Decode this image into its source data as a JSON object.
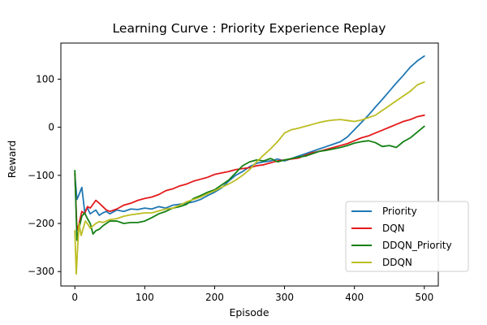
{
  "chart_data": {
    "type": "line",
    "title": "Learning Curve : Priority Experience Replay",
    "xlabel": "Episode",
    "ylabel": "Reward",
    "xlim": [
      -20,
      520
    ],
    "ylim": [
      -330,
      175
    ],
    "xticks": [
      0,
      100,
      200,
      300,
      400,
      500
    ],
    "yticks": [
      -300,
      -200,
      -100,
      0,
      100
    ],
    "legend_position": "lower-right",
    "series": [
      {
        "name": "Priority",
        "color": "#1f77b4",
        "x": [
          0,
          3,
          6,
          10,
          14,
          18,
          22,
          26,
          30,
          35,
          40,
          45,
          50,
          60,
          70,
          80,
          90,
          100,
          110,
          120,
          130,
          140,
          150,
          160,
          170,
          180,
          190,
          200,
          210,
          220,
          230,
          240,
          250,
          260,
          270,
          280,
          290,
          300,
          310,
          320,
          330,
          340,
          350,
          360,
          370,
          380,
          390,
          400,
          410,
          420,
          430,
          440,
          450,
          460,
          470,
          480,
          490,
          500
        ],
        "y": [
          -98,
          -150,
          -140,
          -125,
          -175,
          -168,
          -180,
          -176,
          -172,
          -183,
          -178,
          -175,
          -180,
          -172,
          -175,
          -170,
          -171,
          -168,
          -170,
          -165,
          -168,
          -162,
          -160,
          -158,
          -155,
          -150,
          -142,
          -135,
          -126,
          -112,
          -100,
          -92,
          -82,
          -75,
          -72,
          -70,
          -66,
          -70,
          -65,
          -60,
          -55,
          -50,
          -45,
          -40,
          -35,
          -30,
          -20,
          -5,
          10,
          25,
          42,
          58,
          75,
          92,
          108,
          125,
          138,
          148
        ]
      },
      {
        "name": "DQN",
        "color": "#e31a1c",
        "x": [
          0,
          3,
          6,
          10,
          14,
          18,
          22,
          26,
          30,
          35,
          40,
          45,
          50,
          60,
          70,
          80,
          90,
          100,
          110,
          120,
          130,
          140,
          150,
          160,
          170,
          180,
          190,
          200,
          210,
          220,
          230,
          240,
          250,
          260,
          270,
          280,
          290,
          300,
          310,
          320,
          330,
          340,
          350,
          360,
          370,
          380,
          390,
          400,
          410,
          420,
          430,
          440,
          450,
          460,
          470,
          480,
          490,
          500
        ],
        "y": [
          -95,
          -215,
          -200,
          -175,
          -180,
          -165,
          -168,
          -160,
          -152,
          -158,
          -165,
          -172,
          -175,
          -170,
          -162,
          -158,
          -152,
          -148,
          -145,
          -140,
          -132,
          -128,
          -122,
          -118,
          -112,
          -108,
          -104,
          -98,
          -95,
          -92,
          -88,
          -86,
          -84,
          -80,
          -78,
          -74,
          -70,
          -68,
          -66,
          -64,
          -58,
          -53,
          -50,
          -46,
          -42,
          -38,
          -34,
          -28,
          -22,
          -18,
          -12,
          -6,
          0,
          6,
          12,
          16,
          22,
          25
        ]
      },
      {
        "name": "DDQN_Priority",
        "color": "#138013",
        "x": [
          0,
          3,
          6,
          10,
          14,
          18,
          22,
          26,
          30,
          35,
          40,
          45,
          50,
          60,
          70,
          80,
          90,
          100,
          110,
          120,
          130,
          140,
          150,
          160,
          170,
          180,
          190,
          200,
          210,
          220,
          230,
          240,
          250,
          260,
          270,
          280,
          290,
          300,
          310,
          320,
          330,
          340,
          350,
          360,
          370,
          380,
          390,
          400,
          410,
          420,
          430,
          440,
          450,
          460,
          470,
          480,
          490,
          500
        ],
        "y": [
          -90,
          -235,
          -210,
          -185,
          -178,
          -190,
          -200,
          -222,
          -215,
          -212,
          -205,
          -200,
          -195,
          -195,
          -200,
          -198,
          -198,
          -195,
          -188,
          -180,
          -175,
          -168,
          -165,
          -160,
          -148,
          -142,
          -135,
          -130,
          -120,
          -110,
          -95,
          -80,
          -72,
          -68,
          -70,
          -65,
          -72,
          -68,
          -65,
          -62,
          -60,
          -55,
          -50,
          -48,
          -45,
          -42,
          -38,
          -33,
          -30,
          -28,
          -32,
          -40,
          -38,
          -42,
          -30,
          -22,
          -10,
          2
        ]
      },
      {
        "name": "DDQN",
        "color": "#bcbd22",
        "x": [
          0,
          2,
          4,
          6,
          9,
          12,
          15,
          18,
          22,
          26,
          30,
          35,
          40,
          45,
          50,
          60,
          70,
          80,
          90,
          100,
          110,
          120,
          130,
          140,
          150,
          160,
          170,
          180,
          190,
          200,
          210,
          220,
          230,
          240,
          250,
          260,
          270,
          280,
          290,
          300,
          310,
          320,
          330,
          340,
          350,
          360,
          370,
          380,
          390,
          400,
          410,
          420,
          430,
          440,
          450,
          460,
          470,
          480,
          490,
          500
        ],
        "y": [
          -215,
          -305,
          -250,
          -200,
          -225,
          -210,
          -195,
          -200,
          -210,
          -205,
          -200,
          -196,
          -198,
          -195,
          -192,
          -190,
          -185,
          -182,
          -180,
          -178,
          -178,
          -174,
          -170,
          -168,
          -162,
          -155,
          -150,
          -145,
          -138,
          -132,
          -125,
          -118,
          -110,
          -100,
          -88,
          -72,
          -58,
          -45,
          -30,
          -12,
          -5,
          -2,
          2,
          6,
          10,
          13,
          15,
          16,
          14,
          12,
          15,
          20,
          25,
          35,
          45,
          55,
          65,
          75,
          88,
          94
        ]
      }
    ]
  }
}
